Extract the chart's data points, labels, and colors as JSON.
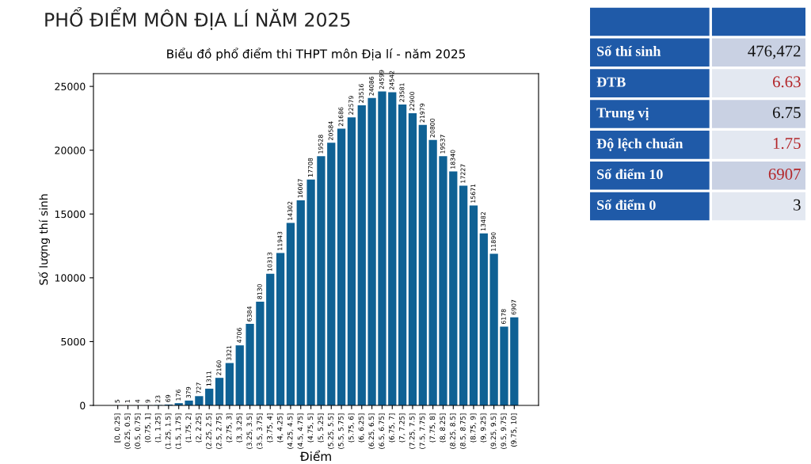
{
  "chart_data": [
    {
      "type": "bar",
      "title": "PHỔ ĐIỂM MÔN ĐỊA LÍ NĂM 2025",
      "subtitle": "Biểu đồ phổ điểm thi THPT môn Địa lí - năm 2025",
      "xlabel": "Điểm",
      "ylabel": "Số lượng thí sinh",
      "categories": [
        "[0, 0.25]",
        "(0.25, 0.5]",
        "(0.5, 0.75]",
        "(0.75, 1]",
        "(1, 1.25]",
        "(1.25, 1.5]",
        "(1.5, 1.75]",
        "(1.75, 2]",
        "(2, 2.25]",
        "(2.25, 2.5]",
        "(2.5, 2.75]",
        "(2.75, 3]",
        "(3, 3.25]",
        "(3.25, 3.5]",
        "(3.5, 3.75]",
        "(3.75, 4]",
        "(4, 4.25]",
        "(4.25, 4.5]",
        "(4.5, 4.75]",
        "(4.75, 5]",
        "(5, 5.25]",
        "(5.25, 5.5]",
        "(5.5, 5.75]",
        "(5.75, 6]",
        "(6, 6.25]",
        "(6.25, 6.5]",
        "(6.5, 6.75]",
        "(6.75, 7]",
        "(7, 7.25]",
        "(7.25, 7.5]",
        "(7.5, 7.75]",
        "(7.75, 8]",
        "(8, 8.25]",
        "(8.25, 8.5]",
        "(8.5, 8.75]",
        "(8.75, 9]",
        "(9, 9.25]",
        "(9.25, 9.5]",
        "(9.5, 9.75]",
        "(9.75, 10]"
      ],
      "values": [
        5,
        1,
        4,
        9,
        23,
        69,
        176,
        379,
        727,
        1311,
        2160,
        3321,
        4706,
        6384,
        8130,
        10313,
        11943,
        14302,
        16067,
        17708,
        19528,
        20584,
        21686,
        22579,
        23516,
        24086,
        24599,
        24542,
        23581,
        22900,
        21979,
        20800,
        19537,
        18340,
        17227,
        15671,
        13482,
        11890,
        6178,
        6907
      ],
      "color": "#0f6194",
      "ylim": [
        0,
        26000
      ],
      "yticks": [
        0,
        5000,
        10000,
        15000,
        20000,
        25000
      ],
      "data_labels": true
    },
    {
      "type": "other",
      "annotations": [
        "Số thí sinh",
        "476,472",
        "ĐTB",
        "6.63",
        "Trung vị",
        "6.75",
        "Độ lệch chuẩn",
        "1.75",
        "Số điểm 10",
        "6907",
        "Số điểm 0",
        "3"
      ],
      "colors": [
        "#ffffff",
        "#111111",
        "#ffffff",
        "#b3262a",
        "#ffffff",
        "#111111",
        "#ffffff",
        "#b3262a",
        "#ffffff",
        "#b3262a",
        "#ffffff",
        "#111111"
      ]
    }
  ]
}
